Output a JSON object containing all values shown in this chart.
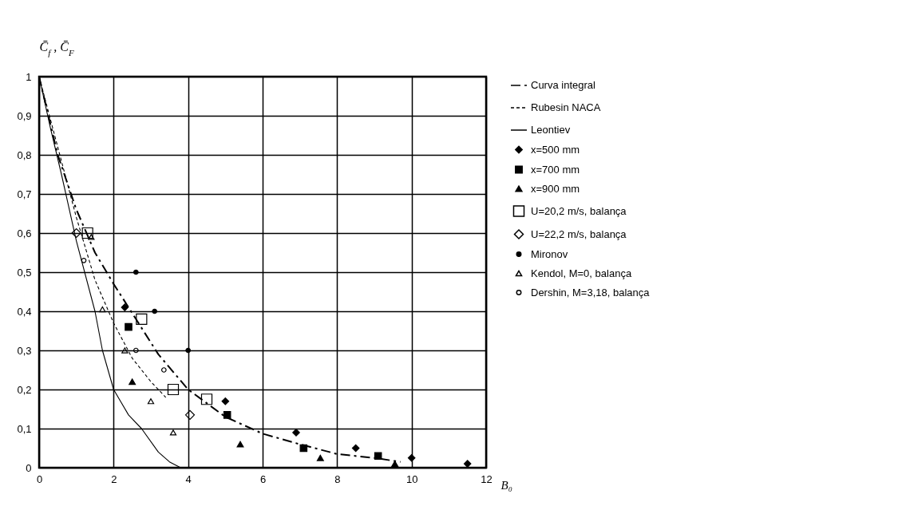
{
  "chart_data": {
    "type": "scatter",
    "xlabel": "B₀",
    "ylabel": "C̄$_{f}$ , C̄$_{F}$",
    "xlim": [
      0,
      12
    ],
    "ylim": [
      0,
      1
    ],
    "xticks": [
      0,
      2,
      4,
      6,
      8,
      10,
      12
    ],
    "yticks": [
      0,
      {
        "value": 0.1,
        "label": "0,1"
      },
      {
        "value": 0.2,
        "label": "0,2"
      },
      {
        "value": 0.3,
        "label": "0,3"
      },
      {
        "value": 0.4,
        "label": "0,4"
      },
      {
        "value": 0.5,
        "label": "0,5"
      },
      {
        "value": 0.6,
        "label": "0,6"
      },
      {
        "value": 0.7,
        "label": "0,7"
      },
      {
        "value": 0.8,
        "label": "0,8"
      },
      {
        "value": 0.9,
        "label": "0,9"
      },
      1
    ],
    "grid": true,
    "legend": "right",
    "series": [
      {
        "name": "Curva integral",
        "type": "line",
        "line_style": "dashdot",
        "color": "#000000",
        "x": [
          0,
          0.5,
          1,
          1.5,
          2,
          2.6,
          3.2,
          4,
          5,
          6,
          7,
          8,
          9,
          9.7
        ],
        "values": [
          1,
          0.8,
          0.66,
          0.55,
          0.47,
          0.38,
          0.29,
          0.2,
          0.13,
          0.087,
          0.06,
          0.035,
          0.025,
          0.015
        ]
      },
      {
        "name": "Rubesin NACA",
        "type": "line",
        "line_style": "dashed",
        "color": "#000000",
        "x": [
          0,
          0.5,
          1,
          1.5,
          2,
          2.5,
          3,
          3.4
        ],
        "values": [
          1,
          0.82,
          0.64,
          0.48,
          0.37,
          0.28,
          0.22,
          0.18
        ]
      },
      {
        "name": "Leontiev",
        "type": "line",
        "line_style": "solid",
        "color": "#000000",
        "x": [
          0,
          0.3,
          0.6,
          1,
          1.5,
          1.7,
          2,
          2.4,
          2.75,
          3.2,
          3.5,
          3.8
        ],
        "values": [
          1,
          0.87,
          0.75,
          0.58,
          0.4,
          0.3,
          0.2,
          0.135,
          0.1,
          0.04,
          0.015,
          0
        ]
      },
      {
        "name": "x=500 mm",
        "type": "scatter",
        "marker": "diamond",
        "color": "#000000",
        "x": [
          2.3,
          5,
          6.9,
          8.5,
          10,
          11.5
        ],
        "values": [
          0.41,
          0.17,
          0.09,
          0.05,
          0.025,
          0.01
        ]
      },
      {
        "name": "x=700 mm",
        "type": "scatter",
        "marker": "square",
        "color": "#000000",
        "x": [
          2.4,
          5.05,
          7.1,
          9.1
        ],
        "values": [
          0.36,
          0.135,
          0.05,
          0.03
        ]
      },
      {
        "name": "x=900 mm",
        "type": "scatter",
        "marker": "triangle",
        "color": "#000000",
        "x": [
          2.5,
          5.4,
          7.55,
          9.55
        ],
        "values": [
          0.22,
          0.06,
          0.025,
          0.01
        ]
      },
      {
        "name": "U=20,2 m/s, balança",
        "type": "scatter",
        "marker": "square-open",
        "color": "#000000",
        "x": [
          1.3,
          2.75,
          3.6,
          4.5
        ],
        "values": [
          0.6,
          0.38,
          0.2,
          0.175
        ]
      },
      {
        "name": "U=22,2 m/s, balança",
        "type": "scatter",
        "marker": "diamond-open",
        "color": "#000000",
        "x": [
          1.0,
          4.05
        ],
        "values": [
          0.6,
          0.135
        ]
      },
      {
        "name": "Mironov",
        "type": "scatter",
        "marker": "circle",
        "color": "#000000",
        "x": [
          2.6,
          3.1,
          4.0
        ],
        "values": [
          0.5,
          0.4,
          0.3
        ]
      },
      {
        "name": "Kendol, M=0, balança",
        "type": "scatter",
        "marker": "triangle-open",
        "color": "#000000",
        "x": [
          1.4,
          1.7,
          2.3,
          3.0,
          3.6
        ],
        "values": [
          0.59,
          0.405,
          0.3,
          0.17,
          0.09
        ]
      },
      {
        "name": "Dershin, M=3,18, balança",
        "type": "scatter",
        "marker": "circle-open",
        "color": "#000000",
        "x": [
          1.2,
          2.6,
          3.35
        ],
        "values": [
          0.53,
          0.3,
          0.25
        ]
      }
    ]
  }
}
